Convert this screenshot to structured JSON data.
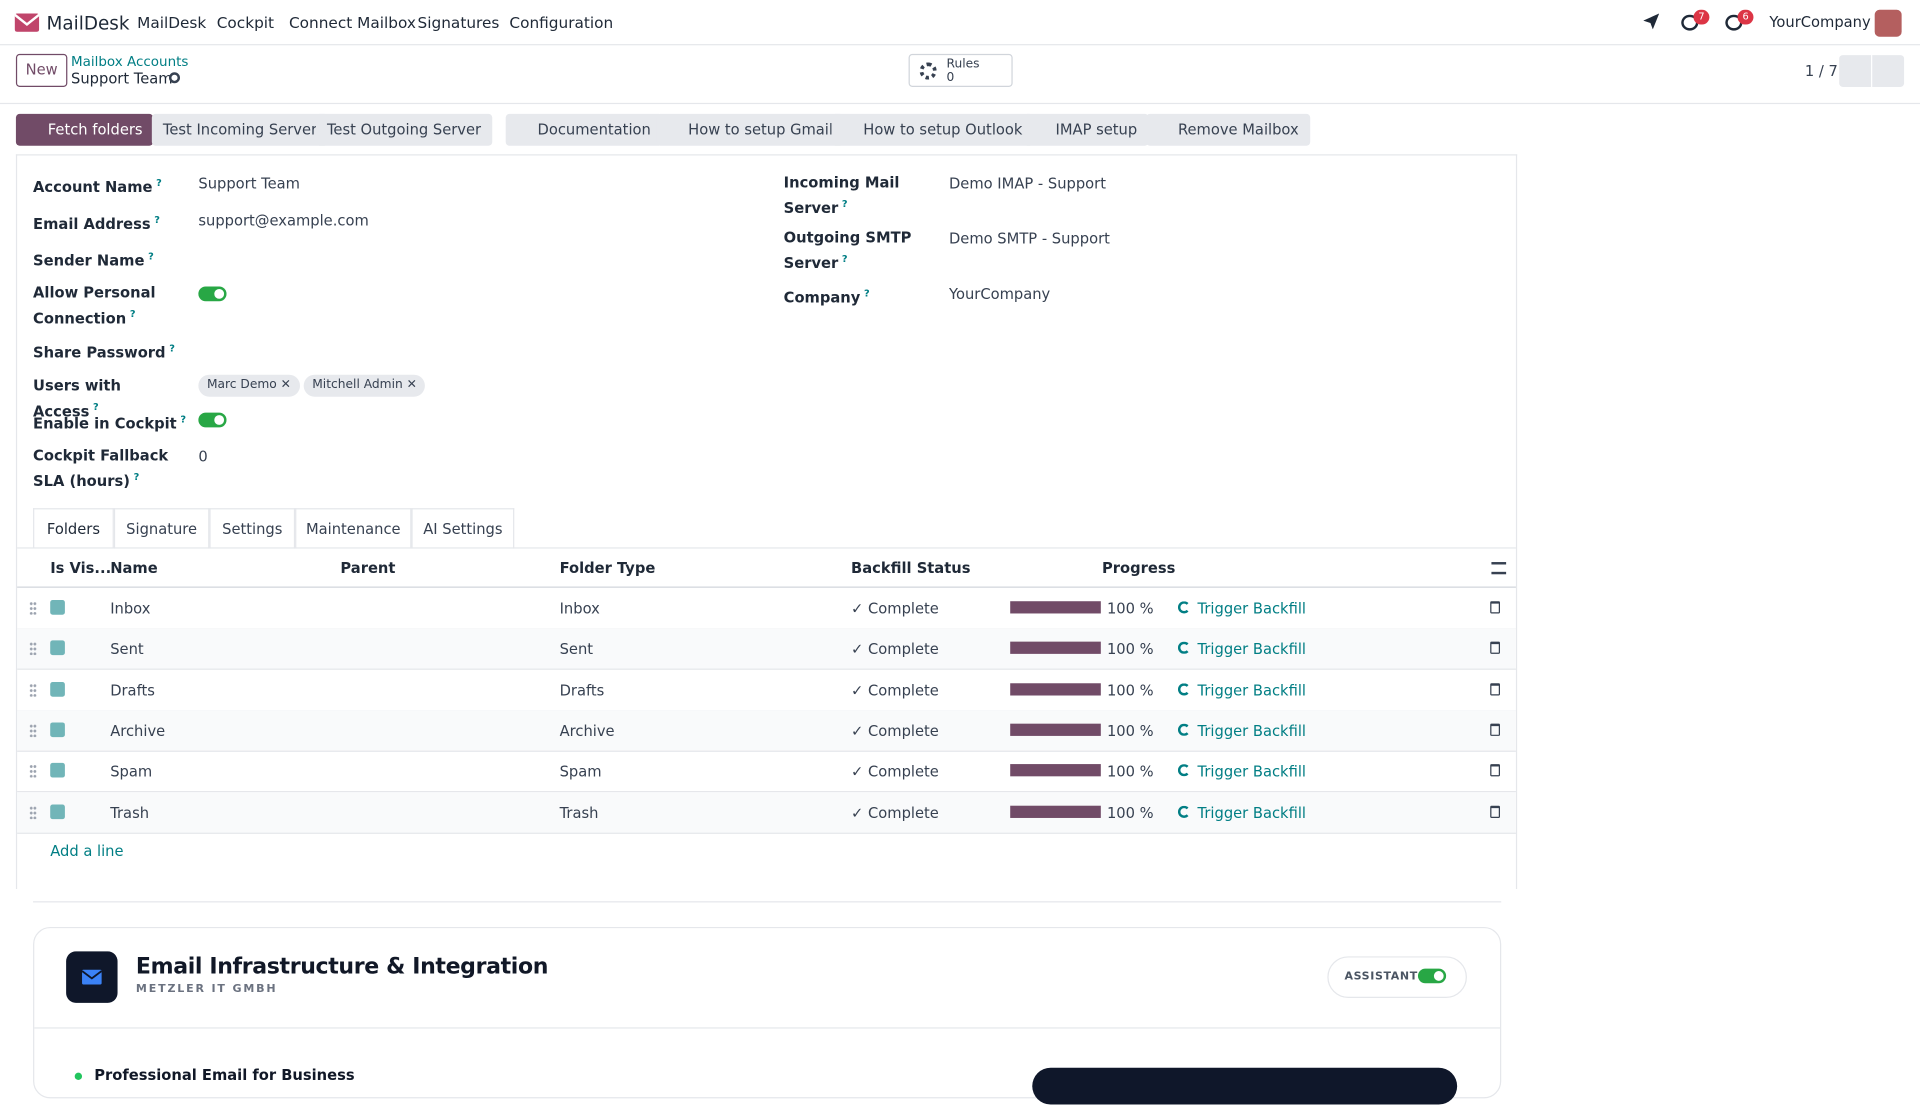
{
  "nav": {
    "brand": "MailDesk",
    "menu": [
      "MailDesk",
      "Cockpit",
      "Connect Mailbox",
      "Signatures",
      "Configuration"
    ],
    "badges": [
      "7",
      "6"
    ],
    "company": "YourCompany"
  },
  "control": {
    "new": "New",
    "breadcrumb": "Mailbox Accounts",
    "record": "Support Team",
    "rules_label": "Rules",
    "rules_count": "0",
    "pager": "1 / 7"
  },
  "buttons": [
    "Fetch folders",
    "Test Incoming Server",
    "Test Outgoing Server",
    "Documentation",
    "How to setup Gmail",
    "How to setup Outlook",
    "IMAP setup",
    "Remove Mailbox"
  ],
  "form": {
    "help_mark": "?",
    "left": [
      {
        "label": "Account Name",
        "value": "Support Team"
      },
      {
        "label": "Email Address",
        "value": "support@example.com"
      },
      {
        "label": "Sender Name"
      },
      {
        "label": "Allow Personal Connection",
        "toggle": true
      },
      {
        "label": "Share Password"
      },
      {
        "label": "Users with Access",
        "tags": [
          "Marc Demo",
          "Mitchell Admin"
        ]
      },
      {
        "label": "Enable in Cockpit",
        "toggle": true
      },
      {
        "label": "Cockpit Fallback SLA (hours)",
        "value": "0"
      }
    ],
    "right": [
      {
        "label": "Incoming Mail Server",
        "value": "Demo IMAP - Support"
      },
      {
        "label": "Outgoing SMTP Server",
        "value": "Demo SMTP - Support"
      },
      {
        "label": "Company",
        "value": "YourCompany"
      }
    ]
  },
  "tabs": [
    "Folders",
    "Signature",
    "Settings",
    "Maintenance",
    "AI Settings"
  ],
  "table": {
    "headers": [
      "Is Vis...",
      "Name",
      "Parent",
      "Folder Type",
      "Backfill Status",
      "Progress"
    ],
    "rows": [
      {
        "name": "Inbox",
        "type": "Inbox",
        "status": "✓ Complete",
        "progress": {
          "value": 100,
          "label": "100 %"
        },
        "action": "Trigger Backfill"
      },
      {
        "name": "Sent",
        "type": "Sent",
        "status": "✓ Complete",
        "progress": {
          "value": 100,
          "label": "100 %"
        },
        "action": "Trigger Backfill"
      },
      {
        "name": "Drafts",
        "type": "Drafts",
        "status": "✓ Complete",
        "progress": {
          "value": 100,
          "label": "100 %"
        },
        "action": "Trigger Backfill"
      },
      {
        "name": "Archive",
        "type": "Archive",
        "status": "✓ Complete",
        "progress": {
          "value": 100,
          "label": "100 %"
        },
        "action": "Trigger Backfill"
      },
      {
        "name": "Spam",
        "type": "Spam",
        "status": "✓ Complete",
        "progress": {
          "value": 100,
          "label": "100 %"
        },
        "action": "Trigger Backfill"
      },
      {
        "name": "Trash",
        "type": "Trash",
        "status": "✓ Complete",
        "progress": {
          "value": 100,
          "label": "100 %"
        },
        "action": "Trigger Backfill"
      }
    ],
    "add": "Add a line"
  },
  "card": {
    "title": "Email Infrastructure & Integration",
    "subtitle": "METZLER IT GMBH",
    "toggle": "ASSISTANT",
    "item": "Professional Email for Business"
  }
}
